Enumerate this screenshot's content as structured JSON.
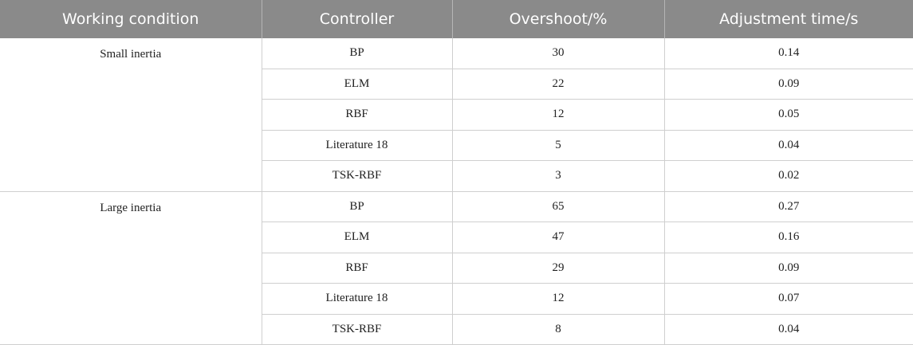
{
  "table": {
    "headers": [
      "Working condition",
      "Controller",
      "Overshoot/%",
      "Adjustment time/s"
    ],
    "groups": [
      {
        "condition": "Small inertia",
        "rows": [
          {
            "controller": "BP",
            "overshoot": "30",
            "time": "0.14"
          },
          {
            "controller": "ELM",
            "overshoot": "22",
            "time": "0.09"
          },
          {
            "controller": "RBF",
            "overshoot": "12",
            "time": "0.05"
          },
          {
            "controller": "Literature 18",
            "overshoot": "5",
            "time": "0.04"
          },
          {
            "controller": "TSK-RBF",
            "overshoot": "3",
            "time": "0.02"
          }
        ]
      },
      {
        "condition": "Large inertia",
        "rows": [
          {
            "controller": "BP",
            "overshoot": "65",
            "time": "0.27"
          },
          {
            "controller": "ELM",
            "overshoot": "47",
            "time": "0.16"
          },
          {
            "controller": "RBF",
            "overshoot": "29",
            "time": "0.09"
          },
          {
            "controller": "Literature 18",
            "overshoot": "12",
            "time": "0.07"
          },
          {
            "controller": "TSK-RBF",
            "overshoot": "8",
            "time": "0.04"
          }
        ]
      }
    ]
  }
}
